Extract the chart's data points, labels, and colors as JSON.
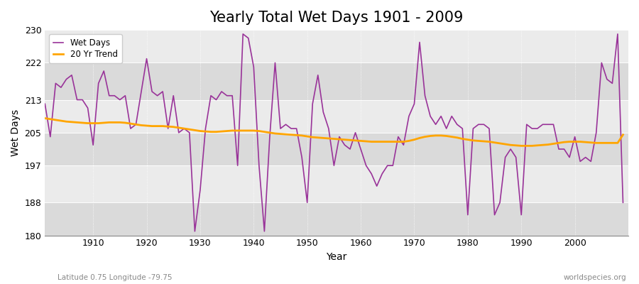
{
  "title": "Yearly Total Wet Days 1901 - 2009",
  "xlabel": "Year",
  "ylabel": "Wet Days",
  "footnote_left": "Latitude 0.75 Longitude -79.75",
  "footnote_right": "worldspecies.org",
  "years": [
    1901,
    1902,
    1903,
    1904,
    1905,
    1906,
    1907,
    1908,
    1909,
    1910,
    1911,
    1912,
    1913,
    1914,
    1915,
    1916,
    1917,
    1918,
    1919,
    1920,
    1921,
    1922,
    1923,
    1924,
    1925,
    1926,
    1927,
    1928,
    1929,
    1930,
    1931,
    1932,
    1933,
    1934,
    1935,
    1936,
    1937,
    1938,
    1939,
    1940,
    1941,
    1942,
    1943,
    1944,
    1945,
    1946,
    1947,
    1948,
    1949,
    1950,
    1951,
    1952,
    1953,
    1954,
    1955,
    1956,
    1957,
    1958,
    1959,
    1960,
    1961,
    1962,
    1963,
    1964,
    1965,
    1966,
    1967,
    1968,
    1969,
    1970,
    1971,
    1972,
    1973,
    1974,
    1975,
    1976,
    1977,
    1978,
    1979,
    1980,
    1981,
    1982,
    1983,
    1984,
    1985,
    1986,
    1987,
    1988,
    1989,
    1990,
    1991,
    1992,
    1993,
    1994,
    1995,
    1996,
    1997,
    1998,
    1999,
    2000,
    2001,
    2002,
    2003,
    2004,
    2005,
    2006,
    2007,
    2008,
    2009
  ],
  "wet_days": [
    212,
    204,
    217,
    216,
    218,
    219,
    213,
    213,
    211,
    202,
    217,
    220,
    214,
    214,
    213,
    214,
    206,
    207,
    215,
    223,
    215,
    214,
    215,
    206,
    214,
    205,
    206,
    205,
    181,
    191,
    206,
    214,
    213,
    215,
    214,
    214,
    197,
    229,
    228,
    221,
    197,
    181,
    204,
    222,
    206,
    207,
    206,
    206,
    199,
    188,
    212,
    219,
    210,
    206,
    197,
    204,
    202,
    201,
    205,
    201,
    197,
    195,
    192,
    195,
    197,
    197,
    204,
    202,
    209,
    212,
    227,
    214,
    209,
    207,
    209,
    206,
    209,
    207,
    206,
    185,
    206,
    207,
    207,
    206,
    185,
    188,
    199,
    201,
    199,
    185,
    207,
    206,
    206,
    207,
    207,
    207,
    201,
    201,
    199,
    204,
    198,
    199,
    198,
    205,
    222,
    218,
    217,
    229,
    188
  ],
  "trend": [
    208.5,
    208.3,
    208.1,
    207.9,
    207.7,
    207.6,
    207.5,
    207.4,
    207.3,
    207.3,
    207.3,
    207.4,
    207.5,
    207.5,
    207.5,
    207.4,
    207.2,
    207.0,
    206.8,
    206.7,
    206.6,
    206.6,
    206.6,
    206.5,
    206.4,
    206.2,
    206.0,
    205.8,
    205.6,
    205.4,
    205.3,
    205.2,
    205.2,
    205.3,
    205.4,
    205.5,
    205.5,
    205.5,
    205.5,
    205.5,
    205.4,
    205.2,
    205.0,
    204.8,
    204.7,
    204.6,
    204.5,
    204.4,
    204.3,
    204.1,
    203.9,
    203.8,
    203.7,
    203.6,
    203.5,
    203.4,
    203.3,
    203.2,
    203.1,
    203.0,
    202.9,
    202.8,
    202.8,
    202.8,
    202.8,
    202.8,
    202.8,
    202.8,
    203.0,
    203.3,
    203.7,
    204.0,
    204.2,
    204.3,
    204.3,
    204.2,
    204.0,
    203.8,
    203.5,
    203.3,
    203.1,
    203.0,
    202.9,
    202.8,
    202.6,
    202.4,
    202.2,
    202.0,
    201.9,
    201.8,
    201.8,
    201.8,
    201.9,
    202.0,
    202.1,
    202.3,
    202.5,
    202.7,
    202.8,
    202.8,
    202.8,
    202.7,
    202.6,
    202.5,
    202.5,
    202.5,
    202.5,
    202.5,
    204.5
  ],
  "wet_days_color": "#993399",
  "trend_color": "#FFA500",
  "fig_bg_color": "#FFFFFF",
  "plot_bg_color": "#E8E8E8",
  "band_color_light": "#EBEBEB",
  "band_color_dark": "#DADADA",
  "ylim": [
    180,
    230
  ],
  "yticks": [
    180,
    188,
    197,
    205,
    213,
    222,
    230
  ],
  "xlim": [
    1901,
    2010
  ],
  "xticks": [
    1910,
    1920,
    1930,
    1940,
    1950,
    1960,
    1970,
    1980,
    1990,
    2000
  ],
  "title_fontsize": 15,
  "axis_fontsize": 9,
  "label_fontsize": 10
}
